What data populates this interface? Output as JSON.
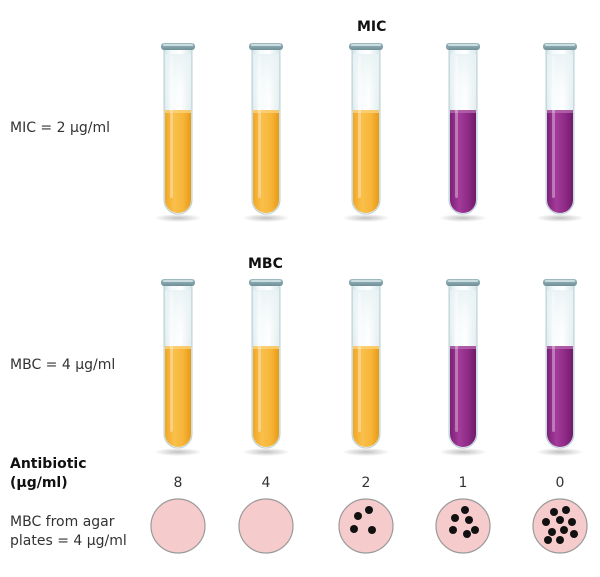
{
  "mic_section": {
    "heading": "MIC",
    "row_label": "MIC = 2 µg/ml",
    "tube_colors": [
      "orange",
      "orange",
      "orange",
      "purple",
      "purple"
    ]
  },
  "mbc_section": {
    "heading": "MBC",
    "row_label": "MBC = 4 µg/ml",
    "tube_colors": [
      "orange",
      "orange",
      "orange",
      "purple",
      "purple"
    ]
  },
  "antibiotic": {
    "title_line1": "Antibiotic",
    "title_line2": "(µg/ml)",
    "concentrations": [
      "8",
      "4",
      "2",
      "1",
      "0"
    ]
  },
  "plates": {
    "label_line1": "MBC from agar",
    "label_line2": "plates = 4 µg/ml",
    "colony_counts": [
      0,
      0,
      4,
      6,
      10
    ]
  },
  "colors": {
    "orange_liquid": "#f7b538",
    "purple_liquid": "#8e2b86",
    "plate": "#f6cbcc",
    "colony": "#111111"
  }
}
